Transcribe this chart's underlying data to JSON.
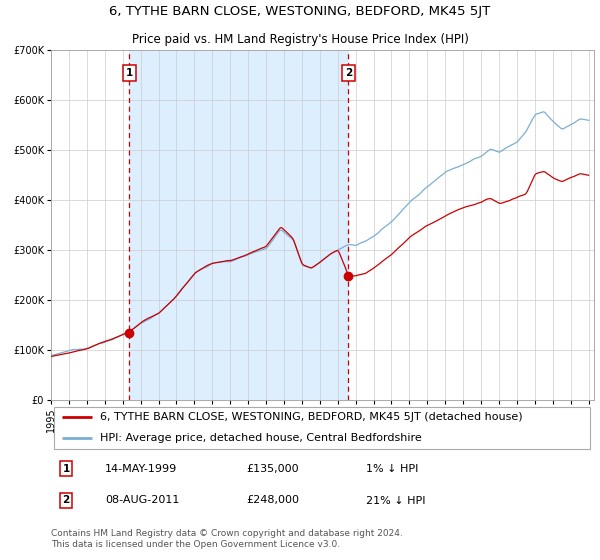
{
  "title": "6, TYTHE BARN CLOSE, WESTONING, BEDFORD, MK45 5JT",
  "subtitle": "Price paid vs. HM Land Registry's House Price Index (HPI)",
  "legend_line1": "6, TYTHE BARN CLOSE, WESTONING, BEDFORD, MK45 5JT (detached house)",
  "legend_line2": "HPI: Average price, detached house, Central Bedfordshire",
  "annotation1_date": "14-MAY-1999",
  "annotation1_price_str": "£135,000",
  "annotation1_hpi_str": "1% ↓ HPI",
  "annotation1_price": 135000,
  "annotation2_date": "08-AUG-2011",
  "annotation2_price_str": "£248,000",
  "annotation2_hpi_str": "21% ↓ HPI",
  "annotation2_price": 248000,
  "footer": "Contains HM Land Registry data © Crown copyright and database right 2024.\nThis data is licensed under the Open Government Licence v3.0.",
  "ylim": [
    0,
    700000
  ],
  "yticks": [
    0,
    100000,
    200000,
    300000,
    400000,
    500000,
    600000,
    700000
  ],
  "ytick_labels": [
    "£0",
    "£100K",
    "£200K",
    "£300K",
    "£400K",
    "£500K",
    "£600K",
    "£700K"
  ],
  "sale1_year": 1999.37,
  "sale2_year": 2011.6,
  "hpi_color": "#7aafd4",
  "price_color": "#cc0000",
  "bg_shading_color": "#ddeeff",
  "dashed_line_color": "#cc0000",
  "marker_color": "#cc0000",
  "grid_color": "#cccccc",
  "title_fontsize": 9.5,
  "subtitle_fontsize": 8.5,
  "tick_fontsize": 7,
  "legend_fontsize": 8,
  "ann_fontsize": 8,
  "footer_fontsize": 6.5
}
